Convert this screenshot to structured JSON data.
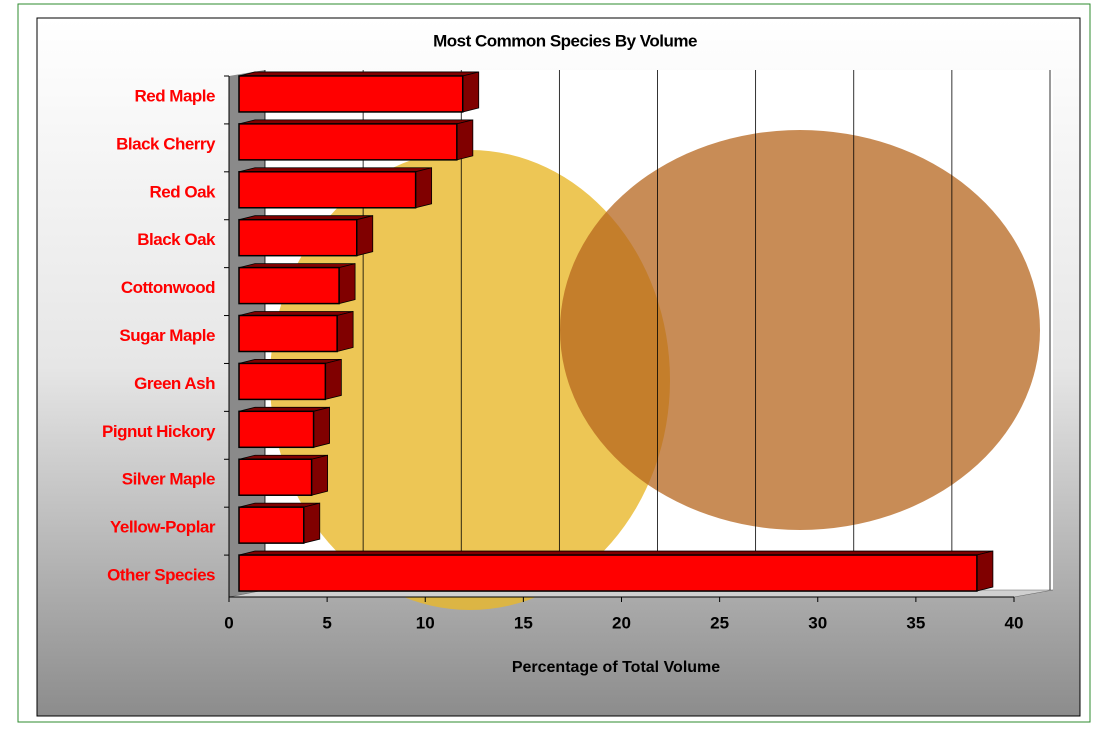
{
  "chart_data": {
    "type": "bar",
    "orientation": "horizontal",
    "title": "Most Common Species By Volume",
    "x_label": "Percentage of Total Volume",
    "categories": [
      "Red Maple",
      "Black Cherry",
      "Red Oak",
      "Black Oak",
      "Cottonwood",
      "Sugar Maple",
      "Green Ash",
      "Pignut Hickory",
      "Silver Maple",
      "Yellow-Poplar",
      "Other Species"
    ],
    "values": [
      11.4,
      11.1,
      9.0,
      6.0,
      5.1,
      5.0,
      4.4,
      3.8,
      3.7,
      3.3,
      37.6
    ],
    "color": "#ff0000",
    "side_color": "#800000",
    "label_color": "#ff0000",
    "xlim": [
      0,
      40
    ],
    "xticks": [
      0,
      5,
      10,
      15,
      20,
      25,
      30,
      35,
      40
    ],
    "grid": true
  }
}
